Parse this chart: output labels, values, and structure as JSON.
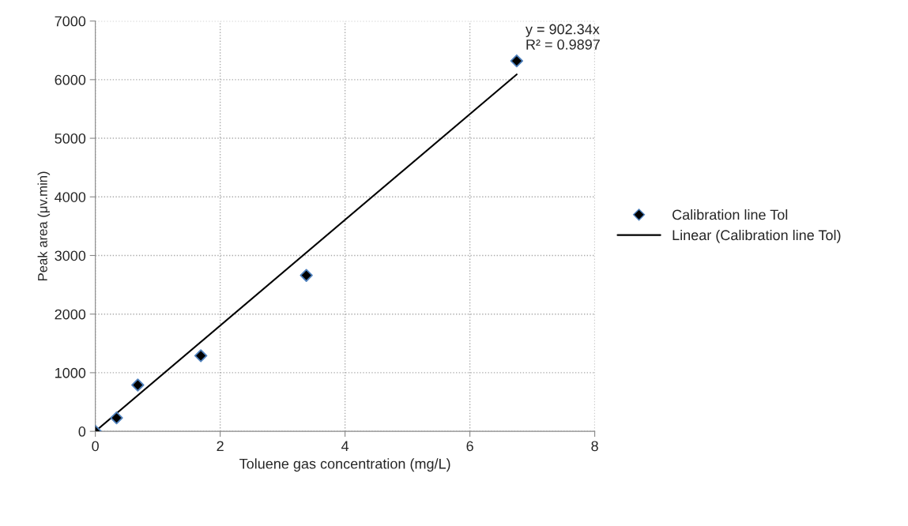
{
  "chart_data": {
    "type": "scatter",
    "xlabel": "Toluene gas concentration (mg/L)",
    "ylabel": "Peak area (μv.min)",
    "xlim": [
      0,
      8
    ],
    "xticks": [
      0,
      2,
      4,
      6,
      8
    ],
    "ylim": [
      0,
      7000
    ],
    "yticks": [
      0,
      1000,
      2000,
      3000,
      4000,
      5000,
      6000,
      7000
    ],
    "grid": true,
    "legend": "right",
    "series": [
      {
        "name": "Calibration line Tol",
        "color": "#000000",
        "marker": "diamond",
        "x": [
          0,
          0.34,
          0.68,
          1.69,
          3.38,
          6.75
        ],
        "values": [
          0,
          230,
          790,
          1290,
          2660,
          6320
        ]
      },
      {
        "name": "Linear (Calibration line Tol)",
        "type": "line",
        "color": "#000000",
        "x": [
          0,
          6.75
        ],
        "values": [
          0,
          6090
        ]
      }
    ],
    "annotations": [
      "y = 902.34x",
      "R² = 0.9897"
    ]
  }
}
